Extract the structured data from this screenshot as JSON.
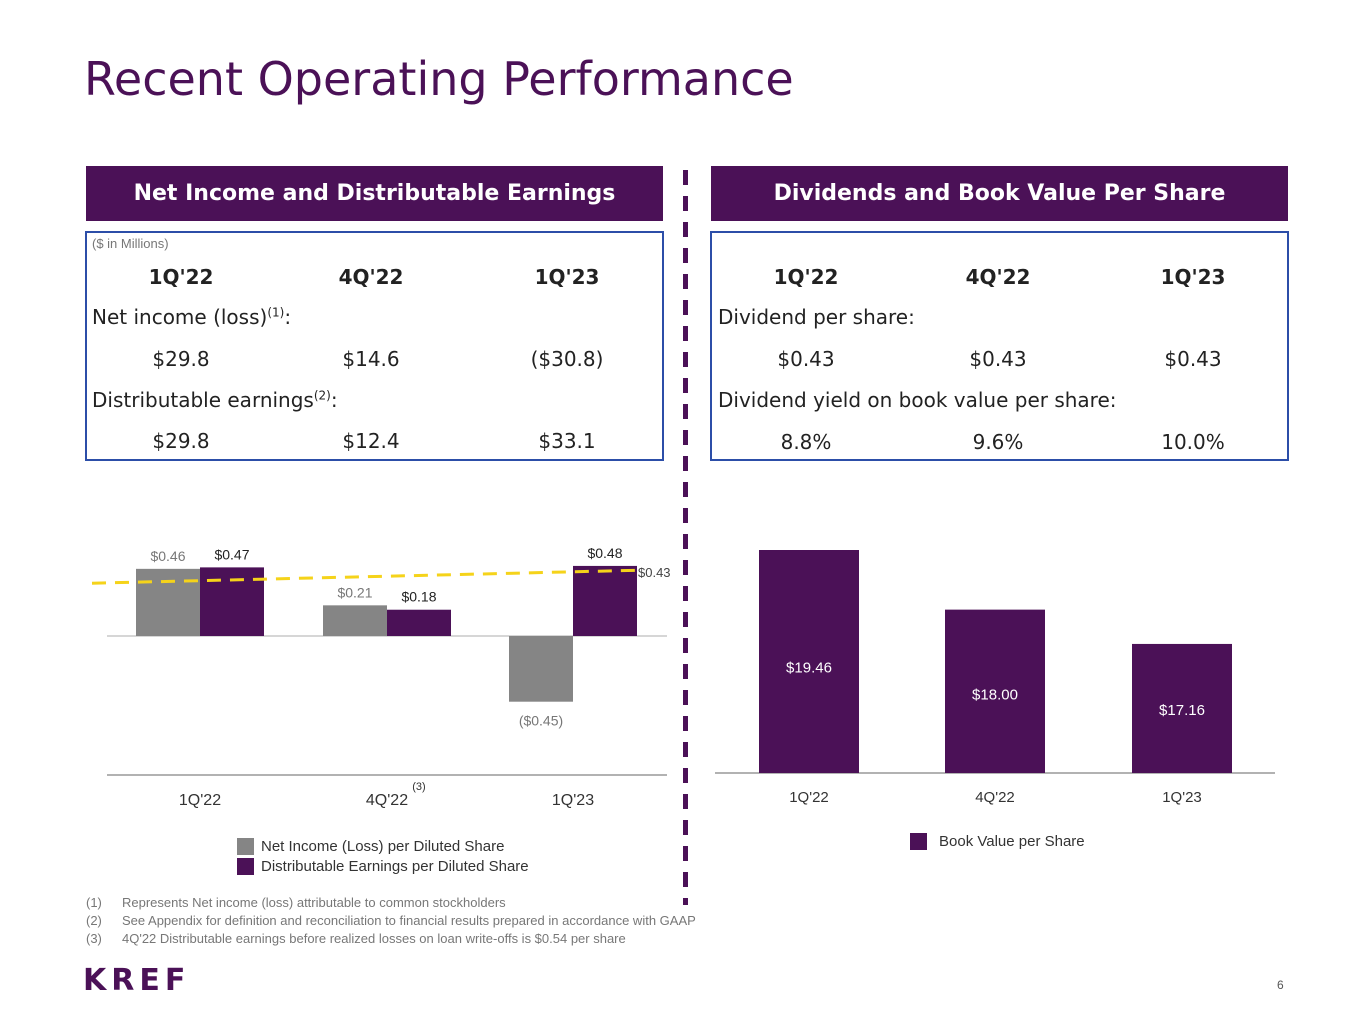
{
  "title": "Recent Operating Performance",
  "left_panel": {
    "header": "Net Income and Distributable Earnings",
    "units_note": "($ in Millions)",
    "columns": [
      "1Q'22",
      "4Q'22",
      "1Q'23"
    ],
    "row1_label": "Net income (loss)",
    "row1_sup": "(1)",
    "row1_values": [
      "$29.8",
      "$14.6",
      "($30.8)"
    ],
    "row2_label": "Distributable earnings",
    "row2_sup": "(2)",
    "row2_values": [
      "$29.8",
      "$12.4",
      "$33.1"
    ]
  },
  "right_panel": {
    "header": "Dividends and Book Value Per Share",
    "columns": [
      "1Q'22",
      "4Q'22",
      "1Q'23"
    ],
    "row1_label": "Dividend per share:",
    "row1_values": [
      "$0.43",
      "$0.43",
      "$0.43"
    ],
    "row2_label": "Dividend yield on book value per share:",
    "row2_values": [
      "8.8%",
      "9.6%",
      "10.0%"
    ]
  },
  "chart_data": [
    {
      "type": "bar",
      "categories": [
        "1Q'22",
        "4Q'22",
        "1Q'23"
      ],
      "category_note": {
        "index": 1,
        "text": "(3)"
      },
      "series": [
        {
          "name": "Net Income (Loss) per Diluted Share",
          "values": [
            0.46,
            0.21,
            -0.45
          ],
          "labels": [
            "$0.46",
            "$0.21",
            "($0.45)"
          ],
          "color": "#858585"
        },
        {
          "name": "Distributable Earnings per Diluted Share",
          "values": [
            0.47,
            0.18,
            0.48
          ],
          "labels": [
            "$0.47",
            "$0.18",
            "$0.48"
          ],
          "color": "#4b1157"
        }
      ],
      "reference_line": {
        "value": 0.43,
        "label": "$0.43",
        "color": "#f5d31a",
        "style": "dashed"
      },
      "ylim": [
        -0.9,
        0.55
      ]
    },
    {
      "type": "bar",
      "categories": [
        "1Q'22",
        "4Q'22",
        "1Q'23"
      ],
      "series": [
        {
          "name": "Book Value per Share",
          "values": [
            19.46,
            18.0,
            17.16
          ],
          "labels": [
            "$19.46",
            "$18.00",
            "$17.16"
          ],
          "color": "#4b1157"
        }
      ],
      "ylim": [
        0,
        20
      ]
    }
  ],
  "footnotes": [
    {
      "n": "(1)",
      "text": "Represents Net income (loss)  attributable to common stockholders"
    },
    {
      "n": "(2)",
      "text": "See Appendix for definition and reconciliation to financial results prepared in accordance with GAAP"
    },
    {
      "n": "(3)",
      "text": "4Q'22 Distributable earnings before realized losses on loan write-offs is $0.54 per share"
    }
  ],
  "logo_text": "KREF",
  "page_number": "6",
  "colors": {
    "brand": "#4b1157",
    "box_border": "#2c4ea8",
    "gray": "#858585",
    "reference": "#f5d31a"
  }
}
